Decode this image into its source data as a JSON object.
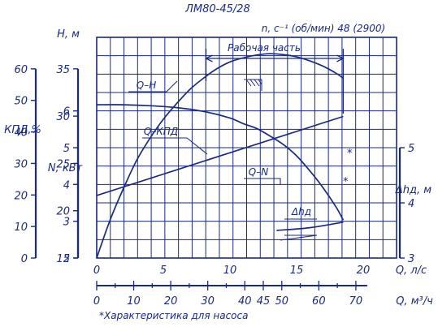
{
  "chart_data": {
    "type": "line",
    "title": "ЛМ80-45/28",
    "subtitle": "n, c⁻¹ (об/мин) 48 (2900)",
    "xlabel": "Q, л/с",
    "x2label": "Q, м³/ч",
    "xlim": [
      0,
      22.5
    ],
    "xticks": [
      0,
      5,
      10,
      15,
      20
    ],
    "x2ticks": [
      "0",
      "10",
      "20",
      "30",
      "40",
      "45",
      "50",
      "60",
      "70"
    ],
    "x2tick_values": [
      0,
      10,
      20,
      30,
      40,
      45,
      50,
      60,
      70
    ],
    "axes": {
      "H": {
        "label": "H, м",
        "ticks": [
          15,
          20,
          25,
          30,
          35
        ],
        "lim": [
          15,
          38.33
        ]
      },
      "KPD": {
        "label": "КПД,%",
        "ticks": [
          0,
          10,
          20,
          30,
          40,
          50,
          60
        ],
        "lim": [
          0,
          70
        ]
      },
      "N": {
        "label": "N, кВт",
        "ticks": [
          2,
          3,
          4,
          5,
          6
        ],
        "lim": [
          2,
          8
        ]
      },
      "dh": {
        "label": "Δhд, м",
        "ticks": [
          3,
          4,
          5
        ],
        "lim": [
          3,
          7
        ]
      }
    },
    "work_zone": {
      "label": "Рабочая часть",
      "x_range": [
        8.2,
        18.5
      ]
    },
    "footnote": "*Характеристика для насоса",
    "series": [
      {
        "name": "Q–H",
        "axis": "H",
        "x": [
          0,
          2,
          4,
          6,
          8,
          10,
          11,
          12,
          13,
          14,
          15,
          16,
          17,
          18,
          18.5
        ],
        "y": [
          31.2,
          31.2,
          31.1,
          30.9,
          30.5,
          29.8,
          29.2,
          28.7,
          27.9,
          27.0,
          25.8,
          24.2,
          22.4,
          20.3,
          19.0
        ]
      },
      {
        "name": "Q–КПД",
        "axis": "KPD",
        "x": [
          0,
          1,
          2,
          3,
          4,
          5,
          6,
          7,
          8,
          9,
          10,
          11,
          12,
          13,
          14,
          15,
          16,
          17,
          18,
          18.5
        ],
        "y": [
          0,
          12,
          22,
          31,
          38,
          44,
          49,
          53.5,
          57,
          60,
          62.2,
          63.5,
          64.4,
          64.8,
          64.5,
          63.8,
          62.5,
          60.8,
          58.5,
          57
        ]
      },
      {
        "name": "Q–N",
        "axis": "N",
        "x": [
          0,
          18.5
        ],
        "y": [
          3.7,
          5.85
        ]
      },
      {
        "name": "Δhд",
        "axis": "dh",
        "x": [
          13.5,
          16,
          18.5
        ],
        "y": [
          3.5,
          3.55,
          3.65
        ]
      }
    ],
    "asterisks": [
      "*",
      "*"
    ],
    "grid": true
  }
}
